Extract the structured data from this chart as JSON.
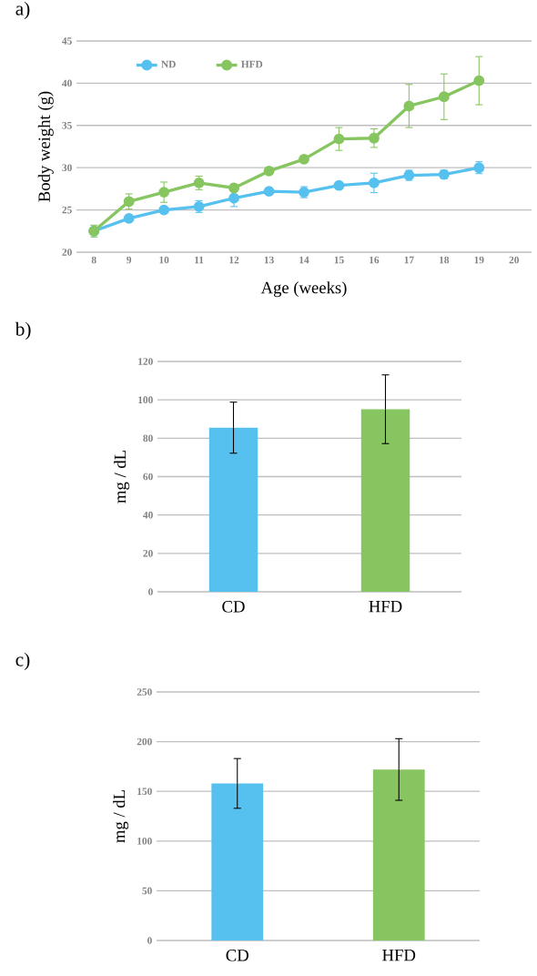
{
  "chart_data": [
    {
      "type": "line",
      "title": "a)",
      "xlabel": "Age (weeks)",
      "ylabel": "Body weight (g)",
      "xlim": [
        7.5,
        20.5
      ],
      "xticks": [
        8,
        9,
        10,
        11,
        12,
        13,
        14,
        15,
        16,
        17,
        18,
        19,
        20
      ],
      "ylim": [
        20,
        45
      ],
      "yticks": [
        20,
        25,
        30,
        35,
        40,
        45
      ],
      "grid": "y",
      "legend": "top left",
      "marker": "circle",
      "x": [
        8,
        9,
        10,
        11,
        12,
        13,
        14,
        15,
        16,
        17,
        18,
        19
      ],
      "series": [
        {
          "name": "ND",
          "color": "#56c1ef",
          "values": [
            22.5,
            24.0,
            25.0,
            25.4,
            26.4,
            27.2,
            27.1,
            27.9,
            28.2,
            29.1,
            29.2,
            30.0
          ],
          "errors": [
            null,
            0.2,
            0.35,
            0.7,
            1.0,
            0.2,
            0.65,
            0.3,
            1.15,
            0.6,
            0.5,
            0.7
          ]
        },
        {
          "name": "HFD",
          "color": "#86c55f",
          "values": [
            22.5,
            26.0,
            27.1,
            28.2,
            27.6,
            29.6,
            31.0,
            33.4,
            33.5,
            37.3,
            38.4,
            40.3
          ],
          "errors": [
            0.7,
            0.9,
            1.2,
            0.8,
            0.2,
            0.2,
            0.2,
            1.35,
            1.1,
            2.55,
            2.7,
            2.85
          ]
        }
      ]
    },
    {
      "type": "bar",
      "title": "b)",
      "ylabel": "mg / dL",
      "categories": [
        "CD",
        "HFD"
      ],
      "ylim": [
        0,
        120
      ],
      "yticks": [
        0,
        20,
        40,
        60,
        80,
        100,
        120
      ],
      "grid": "y",
      "values": [
        85.5,
        95.1
      ],
      "errors": [
        13.3,
        17.9
      ],
      "colors": [
        "#56c1ef",
        "#86c55f"
      ]
    },
    {
      "type": "bar",
      "title": "c)",
      "ylabel": "mg / dL",
      "categories": [
        "CD",
        "HFD"
      ],
      "ylim": [
        0,
        250
      ],
      "yticks": [
        0,
        50,
        100,
        150,
        200,
        250
      ],
      "grid": "y",
      "values": [
        158,
        172
      ],
      "errors": [
        25,
        31
      ],
      "colors": [
        "#56c1ef",
        "#86c55f"
      ]
    }
  ]
}
